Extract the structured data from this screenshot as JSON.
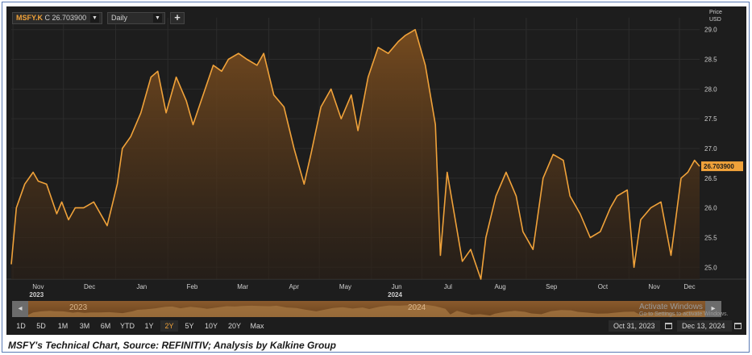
{
  "toolbar": {
    "ticker_symbol": "MSFY.K",
    "ticker_close": "C 26.703900",
    "interval": "Daily",
    "add_label": "+"
  },
  "price_axis": {
    "header_line1": "Price",
    "header_line2": "USD"
  },
  "navigator": {
    "years": [
      "2023",
      "2024"
    ],
    "left_arrow": "◂",
    "right_arrow": "▸",
    "watermark_title": "Activate Windows",
    "watermark_sub": "Go to Settings to activate Windows."
  },
  "range_buttons": [
    "1D",
    "5D",
    "1M",
    "3M",
    "6M",
    "YTD",
    "1Y",
    "2Y",
    "5Y",
    "10Y",
    "20Y",
    "Max"
  ],
  "active_range": "2Y",
  "date_range": {
    "start": "Oct 31, 2023",
    "end": "Dec 13, 2024"
  },
  "caption": "MSFY's Technical Chart, Source: REFINITIV; Analysis by Kalkine Group",
  "colors": {
    "line": "#f0a23a",
    "background": "#1d1d1d",
    "grid": "#2c2c2c",
    "last_label_bg": "#f0a23a"
  },
  "chart_data": {
    "type": "area",
    "title": "",
    "xlabel": "",
    "ylabel": "Price USD",
    "ylim": [
      24.8,
      29.2
    ],
    "yticks": [
      "25.0",
      "25.5",
      "26.0",
      "26.5",
      "27.0",
      "27.5",
      "28.0",
      "28.5",
      "29.0"
    ],
    "xticks": [
      "Nov",
      "Dec",
      "Jan",
      "Feb",
      "Mar",
      "Apr",
      "May",
      "Jun",
      "Jul",
      "Aug",
      "Sep",
      "Oct",
      "Nov",
      "Dec"
    ],
    "year_labels": [
      "2023",
      "2024"
    ],
    "last_value_label": "26.703900",
    "grid": true,
    "series": [
      {
        "x": [
          "2023-10-31",
          "2023-11-03",
          "2023-11-08",
          "2023-11-13",
          "2023-11-16",
          "2023-11-21",
          "2023-11-27",
          "2023-11-30",
          "2023-12-04",
          "2023-12-08",
          "2023-12-13",
          "2023-12-19",
          "2023-12-27",
          "2024-01-02",
          "2024-01-05",
          "2024-01-10",
          "2024-01-16",
          "2024-01-22",
          "2024-01-26",
          "2024-01-31",
          "2024-02-06",
          "2024-02-12",
          "2024-02-16",
          "2024-02-22",
          "2024-02-28",
          "2024-03-04",
          "2024-03-08",
          "2024-03-14",
          "2024-03-19",
          "2024-03-25",
          "2024-03-29",
          "2024-04-04",
          "2024-04-10",
          "2024-04-16",
          "2024-04-22",
          "2024-04-26",
          "2024-05-02",
          "2024-05-08",
          "2024-05-14",
          "2024-05-20",
          "2024-05-24",
          "2024-05-30",
          "2024-06-05",
          "2024-06-11",
          "2024-06-17",
          "2024-06-21",
          "2024-06-27",
          "2024-07-03",
          "2024-07-09",
          "2024-07-12",
          "2024-07-16",
          "2024-07-19",
          "2024-07-25",
          "2024-07-30",
          "2024-08-05",
          "2024-08-08",
          "2024-08-14",
          "2024-08-20",
          "2024-08-26",
          "2024-08-30",
          "2024-09-05",
          "2024-09-11",
          "2024-09-17",
          "2024-09-23",
          "2024-09-27",
          "2024-10-03",
          "2024-10-09",
          "2024-10-15",
          "2024-10-21",
          "2024-10-25",
          "2024-10-31",
          "2024-11-04",
          "2024-11-08",
          "2024-11-14",
          "2024-11-20",
          "2024-11-26",
          "2024-12-02",
          "2024-12-06",
          "2024-12-10",
          "2024-12-13"
        ],
        "y": [
          25.05,
          26.0,
          26.4,
          26.6,
          26.45,
          26.4,
          25.9,
          26.1,
          25.8,
          26.0,
          26.0,
          26.1,
          25.7,
          26.4,
          27.0,
          27.2,
          27.6,
          28.2,
          28.3,
          27.6,
          28.2,
          27.8,
          27.4,
          27.9,
          28.4,
          28.3,
          28.5,
          28.6,
          28.5,
          28.4,
          28.6,
          27.9,
          27.7,
          27.0,
          26.4,
          26.9,
          27.7,
          28.0,
          27.5,
          27.9,
          27.3,
          28.2,
          28.7,
          28.6,
          28.8,
          28.9,
          29.0,
          28.4,
          27.4,
          25.2,
          26.6,
          26.1,
          25.1,
          25.3,
          24.8,
          25.5,
          26.2,
          26.6,
          26.2,
          25.6,
          25.3,
          26.5,
          26.9,
          26.8,
          26.2,
          25.9,
          25.5,
          25.6,
          26.0,
          26.2,
          26.3,
          25.0,
          25.8,
          26.0,
          26.1,
          25.2,
          26.5,
          26.6,
          26.8,
          26.7
        ]
      }
    ]
  }
}
